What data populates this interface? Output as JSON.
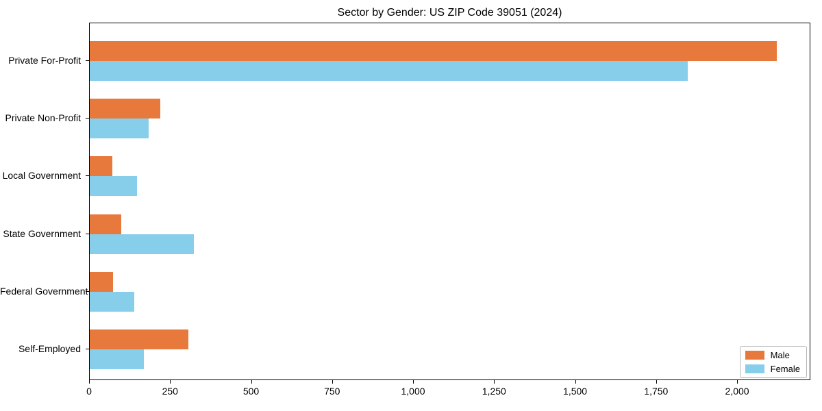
{
  "title": "Sector by Gender: US ZIP Code 39051 (2024)",
  "colors": {
    "male": "#e8793d",
    "female": "#87ceeb",
    "axis": "#000000",
    "legend_border": "#b7b7b7",
    "background": "#ffffff"
  },
  "legend": {
    "items": [
      {
        "label": "Male",
        "color": "#e8793d"
      },
      {
        "label": "Female",
        "color": "#87ceeb"
      }
    ]
  },
  "chart_data": {
    "type": "bar",
    "orientation": "horizontal",
    "title": "Sector by Gender: US ZIP Code 39051 (2024)",
    "categories": [
      "Private For-Profit",
      "Private Non-Profit",
      "Local Government",
      "State Government",
      "Federal Government",
      "Self-Employed"
    ],
    "series": [
      {
        "name": "Male",
        "color": "#e8793d",
        "values": [
          2124,
          218,
          70,
          97,
          72,
          304
        ]
      },
      {
        "name": "Female",
        "color": "#87ceeb",
        "values": [
          1848,
          182,
          146,
          321,
          138,
          167
        ]
      }
    ],
    "xlabel": "",
    "ylabel": "",
    "xlim": [
      0,
      2226
    ],
    "xticks": [
      0,
      250,
      500,
      750,
      1000,
      1250,
      1500,
      1750,
      2000
    ],
    "xtick_labels": [
      "0",
      "250",
      "500",
      "750",
      "1,000",
      "1,250",
      "1,500",
      "1,750",
      "2,000"
    ],
    "grid": false,
    "legend_position": "lower right"
  }
}
